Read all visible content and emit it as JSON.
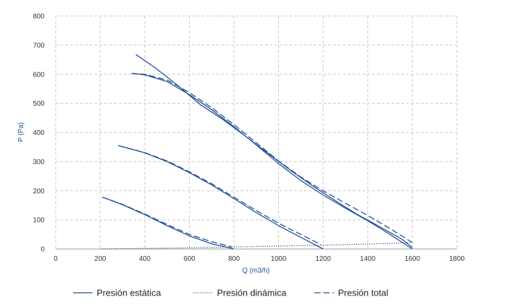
{
  "chart_data": {
    "type": "line",
    "xlabel": "Q (m3/h)",
    "ylabel": "P (Pa)",
    "xlim": [
      0,
      1800
    ],
    "ylim": [
      0,
      800
    ],
    "x_ticks": [
      0,
      200,
      400,
      600,
      800,
      1000,
      1200,
      1400,
      1600,
      1800
    ],
    "y_ticks": [
      0,
      100,
      200,
      300,
      400,
      500,
      600,
      700,
      800
    ],
    "grid": true,
    "legend_position": "bottom",
    "color": "#1f4e96",
    "legend": [
      {
        "label": "Presión estática",
        "style": "solid"
      },
      {
        "label": "Presión dinámica",
        "style": "dotted"
      },
      {
        "label": "Presión total",
        "style": "dashed"
      }
    ],
    "series": [
      {
        "group": "Presión estática",
        "style": "solid",
        "points": [
          [
            210,
            178
          ],
          [
            300,
            152
          ],
          [
            400,
            118
          ],
          [
            500,
            80
          ],
          [
            600,
            45
          ],
          [
            700,
            18
          ],
          [
            800,
            0
          ]
        ]
      },
      {
        "group": "Presión total",
        "style": "dashed",
        "points": [
          [
            210,
            178
          ],
          [
            300,
            153
          ],
          [
            400,
            120
          ],
          [
            500,
            84
          ],
          [
            600,
            50
          ],
          [
            700,
            25
          ],
          [
            790,
            7
          ]
        ]
      },
      {
        "group": "Presión estática",
        "style": "solid",
        "points": [
          [
            280,
            355
          ],
          [
            400,
            330
          ],
          [
            500,
            300
          ],
          [
            600,
            262
          ],
          [
            700,
            220
          ],
          [
            800,
            173
          ],
          [
            900,
            125
          ],
          [
            1000,
            80
          ],
          [
            1100,
            40
          ],
          [
            1200,
            0
          ]
        ]
      },
      {
        "group": "Presión total",
        "style": "dashed",
        "points": [
          [
            280,
            355
          ],
          [
            400,
            331
          ],
          [
            500,
            302
          ],
          [
            600,
            265
          ],
          [
            700,
            224
          ],
          [
            800,
            178
          ],
          [
            900,
            132
          ],
          [
            1000,
            88
          ],
          [
            1100,
            50
          ],
          [
            1190,
            15
          ]
        ]
      },
      {
        "group": "Presión estática",
        "style": "solid",
        "points": [
          [
            340,
            603
          ],
          [
            400,
            598
          ],
          [
            500,
            575
          ],
          [
            600,
            530
          ],
          [
            700,
            478
          ],
          [
            800,
            420
          ],
          [
            900,
            357
          ],
          [
            1000,
            293
          ],
          [
            1100,
            235
          ],
          [
            1200,
            185
          ],
          [
            1300,
            140
          ],
          [
            1400,
            97
          ],
          [
            1500,
            50
          ],
          [
            1600,
            0
          ]
        ]
      },
      {
        "group": "Presión estática",
        "style": "solid",
        "points": [
          [
            360,
            668
          ],
          [
            450,
            620
          ],
          [
            550,
            560
          ],
          [
            650,
            495
          ],
          [
            750,
            445
          ],
          [
            850,
            388
          ],
          [
            950,
            330
          ],
          [
            1050,
            272
          ],
          [
            1150,
            218
          ],
          [
            1250,
            168
          ],
          [
            1350,
            120
          ],
          [
            1450,
            78
          ],
          [
            1550,
            35
          ],
          [
            1600,
            5
          ]
        ]
      },
      {
        "group": "Presión total",
        "style": "dashed",
        "points": [
          [
            340,
            603
          ],
          [
            400,
            600
          ],
          [
            500,
            580
          ],
          [
            600,
            537
          ],
          [
            700,
            485
          ],
          [
            800,
            427
          ],
          [
            900,
            365
          ],
          [
            1000,
            302
          ],
          [
            1100,
            247
          ],
          [
            1200,
            200
          ],
          [
            1300,
            157
          ],
          [
            1400,
            115
          ],
          [
            1500,
            70
          ],
          [
            1600,
            22
          ]
        ]
      },
      {
        "group": "Presión dinámica",
        "style": "dotted",
        "points": [
          [
            200,
            0
          ],
          [
            400,
            2
          ],
          [
            600,
            4
          ],
          [
            800,
            7
          ],
          [
            1000,
            10
          ],
          [
            1200,
            13
          ],
          [
            1400,
            17
          ],
          [
            1600,
            22
          ]
        ]
      }
    ]
  }
}
